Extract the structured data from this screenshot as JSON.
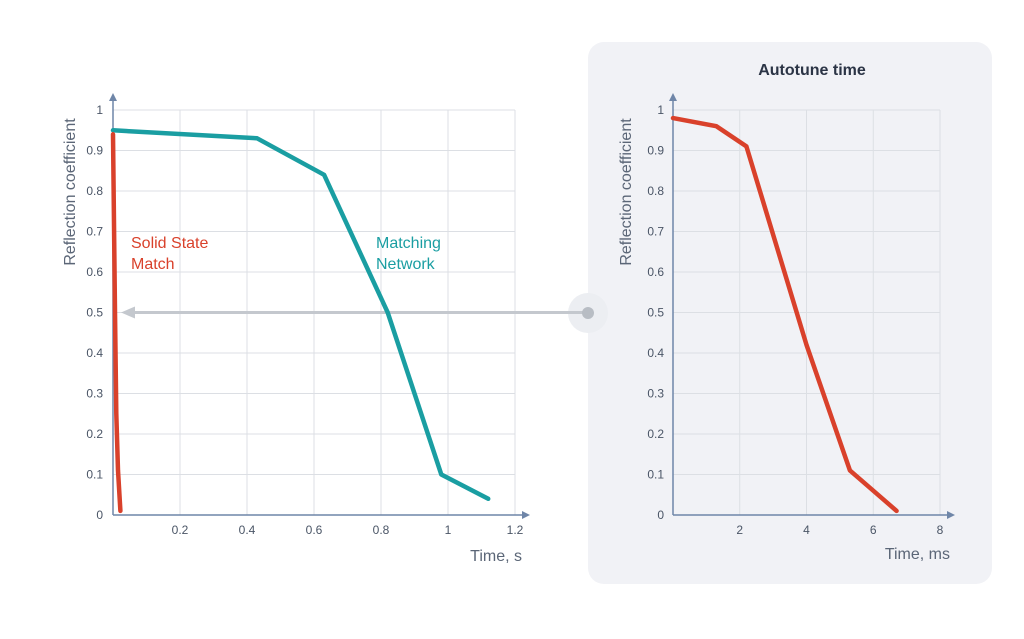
{
  "chart_data": [
    {
      "type": "line",
      "title": "",
      "xlabel": "Time, s",
      "ylabel": "Reflection coefficient",
      "xlim": [
        0,
        1.2
      ],
      "ylim": [
        0,
        1
      ],
      "x_ticks": [
        "0.2",
        "0.4",
        "0.6",
        "0.8",
        "1",
        "1.2"
      ],
      "y_ticks": [
        "0",
        "0.1",
        "0.2",
        "0.3",
        "0.4",
        "0.5",
        "0.6",
        "0.7",
        "0.8",
        "0.9",
        "1"
      ],
      "grid": true,
      "series": [
        {
          "name": "Matching Network",
          "label_lines": [
            "Matching",
            "Network"
          ],
          "color": "#1a9ea2",
          "x": [
            0,
            0.43,
            0.63,
            0.82,
            0.98,
            1.12
          ],
          "y": [
            0.95,
            0.93,
            0.84,
            0.5,
            0.1,
            0.04
          ]
        },
        {
          "name": "Solid State Match",
          "label_lines": [
            "Solid State",
            "Match"
          ],
          "color": "#d9412b",
          "x": [
            0.0,
            0.006,
            0.01,
            0.015,
            0.022
          ],
          "y": [
            0.94,
            0.5,
            0.25,
            0.11,
            0.01
          ]
        }
      ],
      "annotation": {
        "type": "arrow",
        "y": 0.5,
        "color": "#c4c8ce"
      }
    },
    {
      "type": "line",
      "title": "Autotune time",
      "xlabel": "Time, ms",
      "ylabel": "Reflection coefficient",
      "xlim": [
        0,
        8
      ],
      "ylim": [
        0,
        1
      ],
      "x_ticks": [
        "2",
        "4",
        "6",
        "8"
      ],
      "y_ticks": [
        "0",
        "0.1",
        "0.2",
        "0.3",
        "0.4",
        "0.5",
        "0.6",
        "0.7",
        "0.8",
        "0.9",
        "1"
      ],
      "grid": true,
      "series": [
        {
          "name": "",
          "color": "#d9412b",
          "x": [
            0,
            1.3,
            2.2,
            4.0,
            5.3,
            6.7
          ],
          "y": [
            0.98,
            0.96,
            0.91,
            0.42,
            0.11,
            0.01
          ]
        }
      ]
    }
  ]
}
